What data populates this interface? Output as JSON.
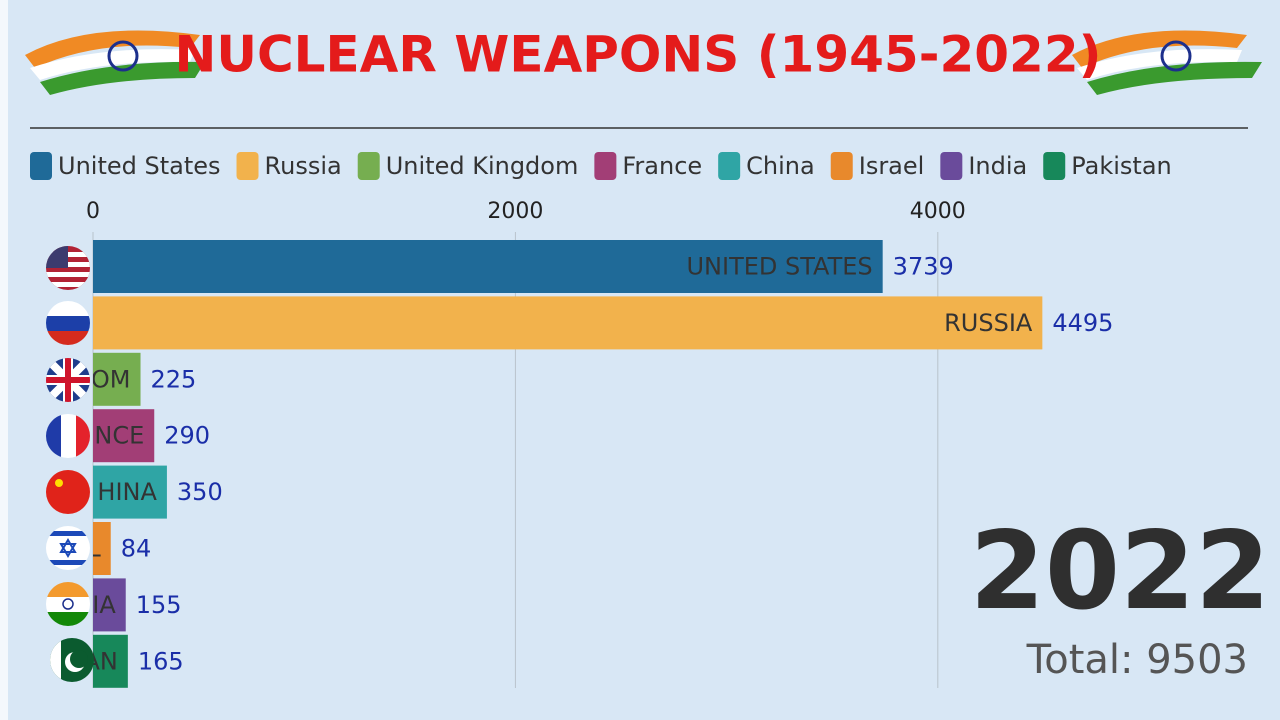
{
  "chart_data": {
    "type": "bar",
    "orientation": "horizontal",
    "title": "NUCLEAR WEAPONS (1945-2022)",
    "categories": [
      "United States",
      "Russia",
      "United Kingdom",
      "France",
      "China",
      "Israel",
      "India",
      "Pakistan"
    ],
    "bar_labels": [
      "UNITED STATES",
      "RUSSIA",
      "OM",
      "NCE",
      "HINA",
      "L",
      "IA",
      "AN"
    ],
    "values": [
      3739,
      4495,
      225,
      290,
      350,
      84,
      155,
      165
    ],
    "colors": [
      "#1f6a98",
      "#f2b24c",
      "#76ae50",
      "#a23e76",
      "#2fa5a5",
      "#e8892c",
      "#6a4b9b",
      "#17885a"
    ],
    "xlim": [
      0,
      5000
    ],
    "xticks": [
      0,
      2000,
      4000
    ],
    "grid": true,
    "year": "2022",
    "total_text": "Total: 9503"
  }
}
